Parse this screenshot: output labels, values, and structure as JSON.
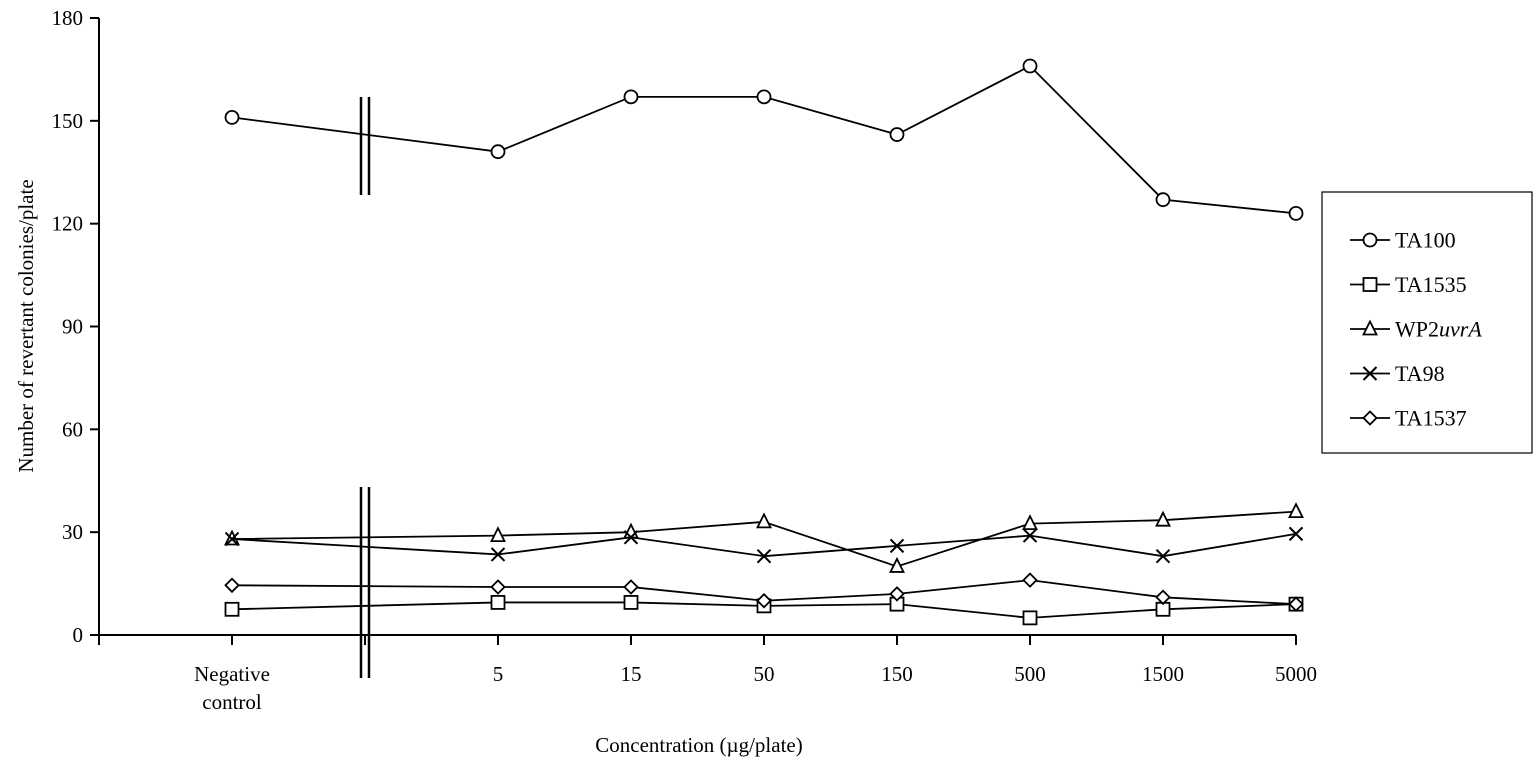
{
  "chart_data": {
    "type": "line",
    "title": "",
    "xlabel": "Concentration (µg/plate)",
    "ylabel": "Number of revertant colonies/plate",
    "ylim": [
      0,
      180
    ],
    "yticks": [
      "0",
      "30",
      "60",
      "90",
      "120",
      "150",
      "180"
    ],
    "categories": [
      [
        "Negative",
        "control"
      ],
      [
        "5"
      ],
      [
        "15"
      ],
      [
        "50"
      ],
      [
        "150"
      ],
      [
        "500"
      ],
      [
        "1500"
      ],
      [
        "5000"
      ]
    ],
    "axis_break": "between Negative control and 5",
    "grid": false,
    "legend_position": "right",
    "series": [
      {
        "name": "TA100",
        "legend_prefix": "TA100",
        "legend_italic": "",
        "marker": "circle",
        "values": [
          151,
          141,
          157,
          157,
          146,
          166,
          127,
          123
        ]
      },
      {
        "name": "TA1535",
        "legend_prefix": "TA1535",
        "legend_italic": "",
        "marker": "square",
        "values": [
          7.5,
          9.5,
          9.5,
          8.5,
          9,
          5,
          7.5,
          9
        ]
      },
      {
        "name": "WP2uvrA",
        "legend_prefix": "WP2",
        "legend_italic": "uvrA",
        "marker": "triangle",
        "values": [
          28,
          29,
          30,
          33,
          20,
          32.5,
          33.5,
          36
        ]
      },
      {
        "name": "TA98",
        "legend_prefix": "TA98",
        "legend_italic": "",
        "marker": "x",
        "values": [
          28,
          23.5,
          28.5,
          23,
          26,
          29,
          23,
          29.5
        ]
      },
      {
        "name": "TA1537",
        "legend_prefix": "TA1537",
        "legend_italic": "",
        "marker": "diamond",
        "values": [
          14.5,
          14,
          14,
          10,
          12,
          16,
          11,
          9
        ]
      }
    ]
  }
}
